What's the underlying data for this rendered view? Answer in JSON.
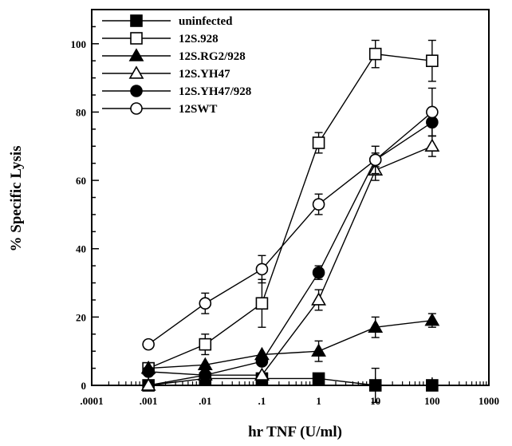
{
  "chart_data": {
    "type": "line",
    "title": "",
    "xlabel": "hr  TNF  (U/ml)",
    "ylabel": "%  Specific  Lysis",
    "x_scale": "log",
    "xlim": [
      0.0001,
      1000
    ],
    "ylim": [
      0,
      110
    ],
    "x_ticks": [
      0.0001,
      0.001,
      0.01,
      0.1,
      1,
      10,
      100,
      1000
    ],
    "x_tick_labels": [
      ".0001",
      ".001",
      ".01",
      ".1",
      "1",
      "10",
      "100",
      "1000"
    ],
    "y_ticks": [
      0,
      20,
      40,
      60,
      80,
      100
    ],
    "y_tick_labels": [
      "0",
      "20",
      "40",
      "60",
      "80",
      "100"
    ],
    "grid": false,
    "legend_position": "top-left",
    "x": [
      0.001,
      0.01,
      0.1,
      1,
      10,
      100
    ],
    "series": [
      {
        "name": "uninfected",
        "marker": "square",
        "filled": true,
        "values": [
          0,
          2,
          2,
          2,
          0,
          0
        ],
        "errors": [
          1,
          1,
          1,
          1,
          5,
          1
        ]
      },
      {
        "name": "12S.928",
        "marker": "square",
        "filled": false,
        "values": [
          5,
          12,
          24,
          71,
          97,
          95
        ],
        "errors": [
          1,
          3,
          7,
          3,
          4,
          6
        ]
      },
      {
        "name": "12S.RG2/928",
        "marker": "triangle",
        "filled": true,
        "values": [
          5,
          6,
          9,
          10,
          17,
          19
        ],
        "errors": [
          1,
          1,
          1,
          3,
          3,
          2
        ]
      },
      {
        "name": "12S.YH47",
        "marker": "triangle",
        "filled": false,
        "values": [
          0,
          3,
          3,
          25,
          63,
          70
        ],
        "errors": [
          1,
          1,
          1,
          3,
          3,
          3
        ]
      },
      {
        "name": "12S.YH47/928",
        "marker": "circle",
        "filled": true,
        "values": [
          4,
          3,
          7,
          33,
          66,
          77
        ],
        "errors": [
          1,
          1,
          1,
          2,
          2,
          4
        ]
      },
      {
        "name": "12SWT",
        "marker": "circle",
        "filled": false,
        "values": [
          12,
          24,
          34,
          53,
          66,
          80
        ],
        "errors": [
          1,
          3,
          4,
          3,
          4,
          7
        ]
      }
    ],
    "colors": {
      "line": "#000000",
      "fill": "#000000",
      "open_fill": "#ffffff"
    }
  }
}
